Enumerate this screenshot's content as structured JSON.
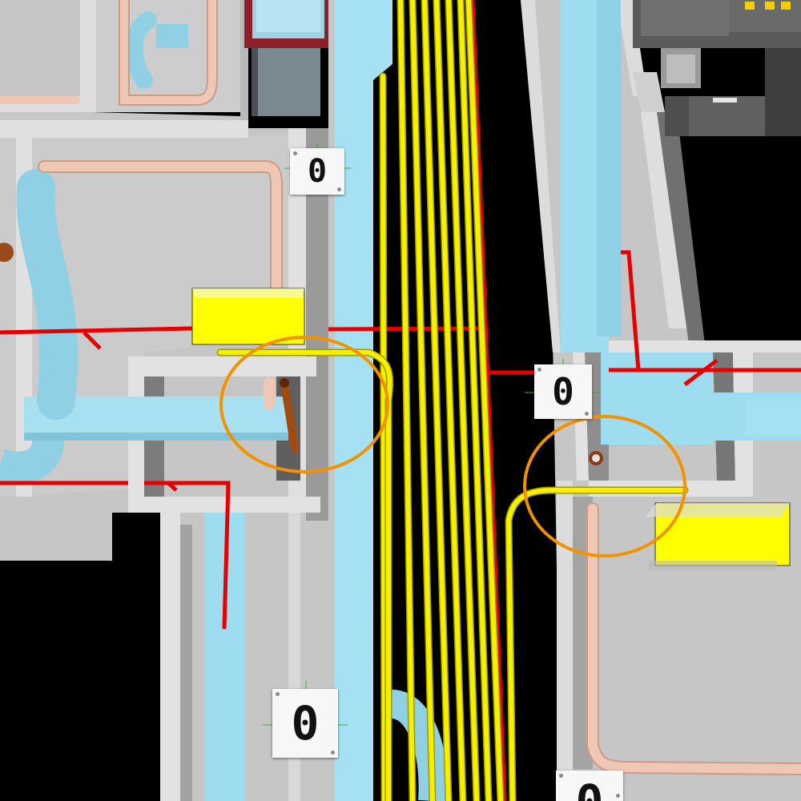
{
  "viewport": {
    "kind": "3d-model-view"
  },
  "colors": {
    "background": "#000000",
    "floor": "#c7c7c7",
    "wall_top": "#e2e2e2",
    "wall_side": "#9c9c9c",
    "duct": "#9edcef",
    "duct_shadow": "#6fb5c9",
    "pipe_pink": "#f0c7b5",
    "pipe_pink_edge": "#c99c88",
    "cable_yellow": "#f5f000",
    "cable_yellow_edge": "#9e9700",
    "pipe_red": "#e60000",
    "clash_marker": "#f39200",
    "equipment_yellow": "#ffff00",
    "rust_pipe": "#a04a14"
  },
  "clash_markers": [
    {
      "id": "clash-1",
      "name": "clash-marker-left"
    },
    {
      "id": "clash-2",
      "name": "clash-marker-right"
    }
  ],
  "tags": [
    {
      "id": "tag-top",
      "label": "0"
    },
    {
      "id": "tag-mid-right",
      "label": "0"
    },
    {
      "id": "tag-bottom-left",
      "label": "0"
    },
    {
      "id": "tag-bottom-right",
      "label": "0"
    }
  ]
}
